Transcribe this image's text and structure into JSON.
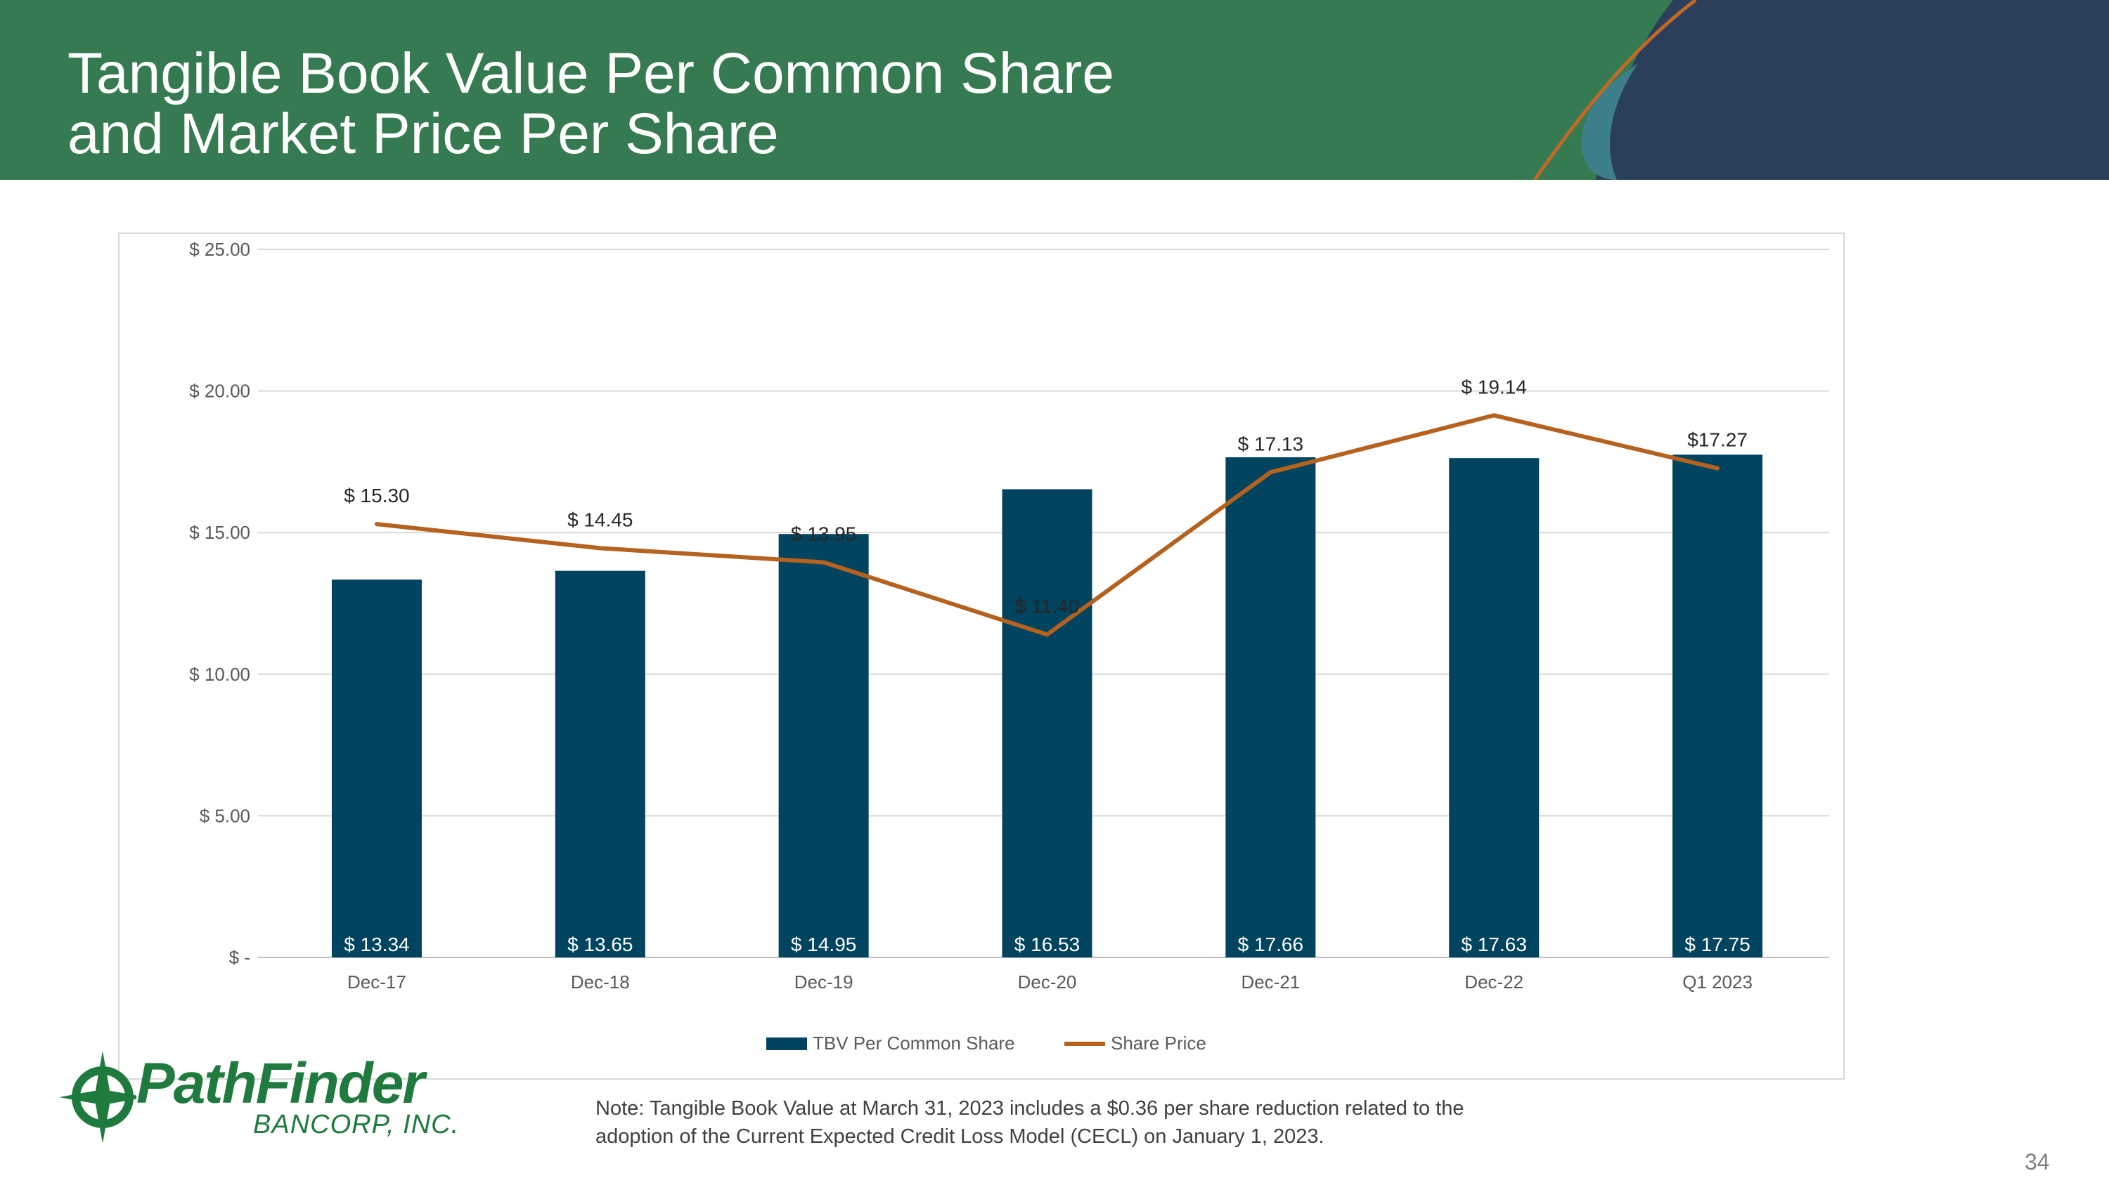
{
  "slide": {
    "title_line1": "Tangible Book Value Per Common Share",
    "title_line2": "and Market Price Per Share",
    "note_line1": "Note: Tangible Book Value at March 31, 2023 includes a $0.36 per share reduction related to the",
    "note_line2": "adoption of the Current Expected Credit Loss Model (CECL) on January 1, 2023.",
    "page_number": "34"
  },
  "logo": {
    "name": "PathFinder",
    "subtitle": "BANCORP, INC."
  },
  "colors": {
    "header_green": "#367a52",
    "header_navy": "#2b3f5c",
    "bar": "#00445f",
    "line": "#b5611f",
    "logo_green": "#1f7a3e"
  },
  "chart_data": {
    "type": "bar+line",
    "categories": [
      "Dec-17",
      "Dec-18",
      "Dec-19",
      "Dec-20",
      "Dec-21",
      "Dec-22",
      "Q1 2023"
    ],
    "series": [
      {
        "name": "TBV Per Common Share",
        "type": "bar",
        "values": [
          13.34,
          13.65,
          14.95,
          16.53,
          17.66,
          17.63,
          17.75
        ],
        "labels": [
          "$ 13.34",
          "$ 13.65",
          "$ 14.95",
          "$ 16.53",
          "$ 17.66",
          "$ 17.63",
          "$ 17.75"
        ]
      },
      {
        "name": "Share Price",
        "type": "line",
        "values": [
          15.3,
          14.45,
          13.95,
          11.4,
          17.13,
          19.14,
          17.27
        ],
        "labels": [
          "$ 15.30",
          "$ 14.45",
          "$ 13.95",
          "$ 11.40",
          "$ 17.13",
          "$ 19.14",
          "$17.27"
        ]
      }
    ],
    "y_ticks": [
      0,
      5,
      10,
      15,
      20,
      25
    ],
    "y_tick_labels": [
      "$ -",
      "$ 5.00",
      "$ 10.00",
      "$ 15.00",
      "$ 20.00",
      "$ 25.00"
    ],
    "ylim": [
      0,
      25
    ],
    "grid": true,
    "legend_position": "bottom"
  }
}
